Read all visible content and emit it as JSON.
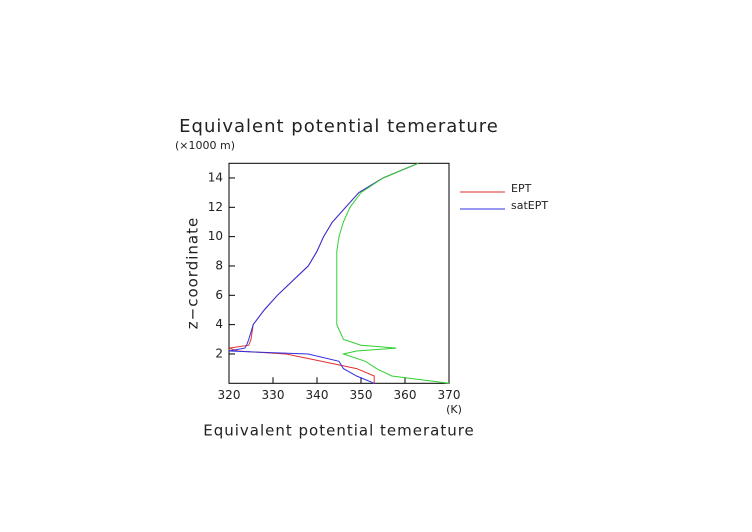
{
  "chart_data": {
    "type": "line",
    "title": "Equivalent potential temerature",
    "x_label": "Equivalent potential temerature",
    "x_unit": "(K)",
    "y_label": "z−coordinate",
    "y_unit": "(×1000 m)",
    "y": [
      0,
      0.5,
      1,
      1.5,
      2,
      2.2,
      2.4,
      2.6,
      3,
      4,
      5,
      6,
      7,
      8,
      9,
      10,
      11,
      12,
      13,
      14,
      15
    ],
    "series": [
      {
        "name": "EPT",
        "color": "#e03030",
        "values": [
          353,
          353,
          349,
          341,
          333,
          322,
          320,
          324.5,
          325,
          325.5,
          328,
          331,
          334.5,
          338,
          340,
          341.5,
          343.5,
          346.5,
          349.5,
          355,
          363
        ]
      },
      {
        "name": "satEPT",
        "color": "#3030e0",
        "values": [
          353,
          349,
          346,
          345,
          338,
          320,
          323.6,
          324,
          324.5,
          325.5,
          328,
          331,
          334.5,
          338,
          340,
          341.5,
          343.5,
          346.5,
          349.5,
          355,
          363
        ]
      },
      {
        "color": "#30d030",
        "values": [
          370,
          357,
          353.5,
          351,
          346,
          349,
          358,
          350,
          346,
          344.5,
          344.5,
          344.5,
          344.5,
          344.5,
          344.5,
          345,
          346,
          347.5,
          350,
          355,
          363
        ]
      }
    ],
    "xlim": [
      320,
      370
    ],
    "xticks": [
      320,
      330,
      340,
      350,
      360,
      370
    ],
    "ylim": [
      0,
      15
    ],
    "yticks": [
      2,
      4,
      6,
      8,
      10,
      12,
      14
    ]
  }
}
